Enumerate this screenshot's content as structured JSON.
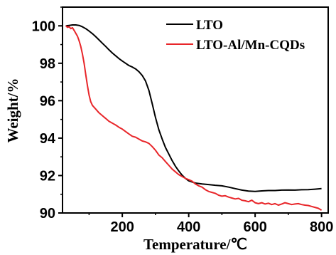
{
  "chart_data": {
    "type": "line",
    "title": "",
    "xlabel": "Temperature/℃",
    "ylabel": "Weight/%",
    "xlim": [
      20,
      820
    ],
    "ylim": [
      90,
      101
    ],
    "xticks": [
      200,
      400,
      600,
      800
    ],
    "yticks": [
      90,
      92,
      94,
      96,
      98,
      100
    ],
    "x_tick_labels": [
      "200",
      "400",
      "600",
      "800"
    ],
    "y_tick_labels": [
      "90",
      "92",
      "94",
      "96",
      "98",
      "100"
    ],
    "grid": false,
    "legend_position": "top-right",
    "series": [
      {
        "name": "LTO",
        "color": "#000000",
        "points": [
          [
            30,
            100.0
          ],
          [
            40,
            100.02
          ],
          [
            50,
            100.05
          ],
          [
            60,
            100.05
          ],
          [
            70,
            100.02
          ],
          [
            80,
            99.95
          ],
          [
            90,
            99.85
          ],
          [
            100,
            99.72
          ],
          [
            110,
            99.58
          ],
          [
            120,
            99.42
          ],
          [
            130,
            99.25
          ],
          [
            140,
            99.07
          ],
          [
            150,
            98.9
          ],
          [
            160,
            98.72
          ],
          [
            170,
            98.55
          ],
          [
            180,
            98.4
          ],
          [
            190,
            98.25
          ],
          [
            200,
            98.12
          ],
          [
            210,
            98.0
          ],
          [
            220,
            97.88
          ],
          [
            230,
            97.8
          ],
          [
            240,
            97.7
          ],
          [
            250,
            97.55
          ],
          [
            260,
            97.35
          ],
          [
            270,
            97.05
          ],
          [
            280,
            96.55
          ],
          [
            290,
            95.85
          ],
          [
            300,
            95.1
          ],
          [
            310,
            94.45
          ],
          [
            320,
            93.95
          ],
          [
            330,
            93.5
          ],
          [
            340,
            93.15
          ],
          [
            350,
            92.8
          ],
          [
            360,
            92.5
          ],
          [
            370,
            92.25
          ],
          [
            380,
            92.02
          ],
          [
            390,
            91.85
          ],
          [
            400,
            91.72
          ],
          [
            420,
            91.6
          ],
          [
            440,
            91.55
          ],
          [
            460,
            91.52
          ],
          [
            480,
            91.48
          ],
          [
            500,
            91.45
          ],
          [
            520,
            91.38
          ],
          [
            540,
            91.3
          ],
          [
            560,
            91.22
          ],
          [
            580,
            91.17
          ],
          [
            600,
            91.15
          ],
          [
            620,
            91.18
          ],
          [
            640,
            91.2
          ],
          [
            660,
            91.2
          ],
          [
            680,
            91.22
          ],
          [
            700,
            91.23
          ],
          [
            720,
            91.22
          ],
          [
            740,
            91.24
          ],
          [
            760,
            91.25
          ],
          [
            780,
            91.27
          ],
          [
            800,
            91.3
          ]
        ]
      },
      {
        "name": "LTO-Al/Mn-CQDs",
        "color": "#e8262a",
        "points": [
          [
            30,
            100.0
          ],
          [
            35,
            99.92
          ],
          [
            40,
            99.95
          ],
          [
            45,
            99.85
          ],
          [
            50,
            99.9
          ],
          [
            55,
            99.75
          ],
          [
            60,
            99.6
          ],
          [
            65,
            99.45
          ],
          [
            70,
            99.2
          ],
          [
            75,
            98.9
          ],
          [
            80,
            98.5
          ],
          [
            85,
            98.0
          ],
          [
            90,
            97.4
          ],
          [
            95,
            96.8
          ],
          [
            100,
            96.3
          ],
          [
            105,
            95.95
          ],
          [
            110,
            95.75
          ],
          [
            120,
            95.55
          ],
          [
            130,
            95.35
          ],
          [
            140,
            95.2
          ],
          [
            150,
            95.05
          ],
          [
            160,
            94.9
          ],
          [
            170,
            94.8
          ],
          [
            180,
            94.7
          ],
          [
            190,
            94.58
          ],
          [
            200,
            94.48
          ],
          [
            210,
            94.35
          ],
          [
            220,
            94.22
          ],
          [
            230,
            94.1
          ],
          [
            240,
            94.05
          ],
          [
            250,
            93.95
          ],
          [
            260,
            93.85
          ],
          [
            270,
            93.8
          ],
          [
            280,
            93.72
          ],
          [
            290,
            93.55
          ],
          [
            300,
            93.35
          ],
          [
            310,
            93.1
          ],
          [
            320,
            92.95
          ],
          [
            330,
            92.75
          ],
          [
            340,
            92.55
          ],
          [
            350,
            92.35
          ],
          [
            360,
            92.2
          ],
          [
            370,
            92.05
          ],
          [
            380,
            91.95
          ],
          [
            390,
            91.85
          ],
          [
            400,
            91.78
          ],
          [
            410,
            91.7
          ],
          [
            420,
            91.55
          ],
          [
            430,
            91.45
          ],
          [
            440,
            91.38
          ],
          [
            450,
            91.25
          ],
          [
            460,
            91.15
          ],
          [
            470,
            91.1
          ],
          [
            480,
            91.05
          ],
          [
            490,
            90.95
          ],
          [
            500,
            90.9
          ],
          [
            510,
            90.92
          ],
          [
            520,
            90.85
          ],
          [
            530,
            90.8
          ],
          [
            540,
            90.75
          ],
          [
            550,
            90.78
          ],
          [
            560,
            90.68
          ],
          [
            570,
            90.65
          ],
          [
            580,
            90.6
          ],
          [
            590,
            90.68
          ],
          [
            600,
            90.55
          ],
          [
            610,
            90.5
          ],
          [
            620,
            90.55
          ],
          [
            630,
            90.48
          ],
          [
            640,
            90.52
          ],
          [
            650,
            90.45
          ],
          [
            660,
            90.5
          ],
          [
            670,
            90.42
          ],
          [
            680,
            90.48
          ],
          [
            690,
            90.55
          ],
          [
            700,
            90.5
          ],
          [
            710,
            90.45
          ],
          [
            720,
            90.48
          ],
          [
            730,
            90.5
          ],
          [
            740,
            90.45
          ],
          [
            750,
            90.42
          ],
          [
            760,
            90.4
          ],
          [
            770,
            90.35
          ],
          [
            780,
            90.3
          ],
          [
            790,
            90.25
          ],
          [
            795,
            90.2
          ],
          [
            800,
            90.15
          ]
        ]
      }
    ]
  }
}
